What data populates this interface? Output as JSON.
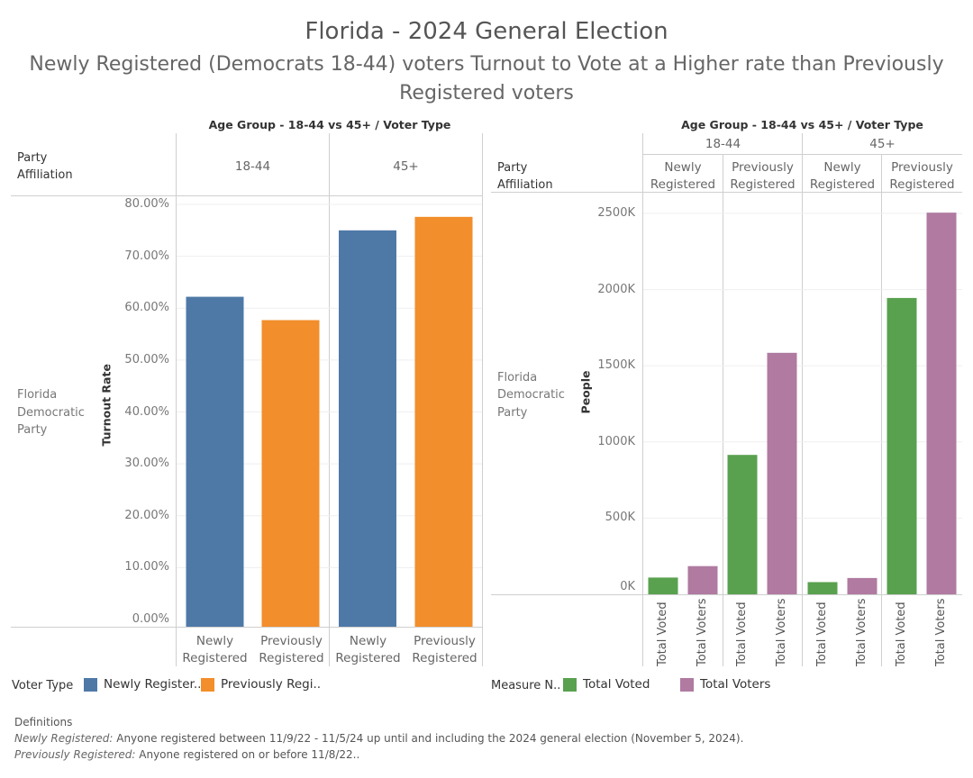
{
  "title": "Florida - 2024 General Election",
  "subtitle": "Newly Registered (Democrats 18-44) voters Turnout to Vote at a Higher rate than Previously Registered voters",
  "left_panel": {
    "header": "Age Group - 18-44 vs 45+  /  Voter Type",
    "row_header_1": "Party",
    "row_header_2": "Affiliation",
    "row_label_1": "Florida",
    "row_label_2": "Democratic",
    "row_label_3": "Party",
    "age_groups": [
      "18-44",
      "45+"
    ],
    "axis_title": "Turnout Rate",
    "ticks": [
      "0.00%",
      "10.00%",
      "20.00%",
      "30.00%",
      "40.00%",
      "50.00%",
      "60.00%",
      "70.00%",
      "80.00%"
    ],
    "bar_labels": [
      {
        "l1": "Newly",
        "l2": "Registered"
      },
      {
        "l1": "Previously",
        "l2": "Registered"
      },
      {
        "l1": "Newly",
        "l2": "Registered"
      },
      {
        "l1": "Previously",
        "l2": "Registered"
      }
    ]
  },
  "right_panel": {
    "header": "Age Group - 18-44 vs 45+  /  Voter Type",
    "row_header_1": "Party",
    "row_header_2": "Affiliation",
    "row_label_1": "Florida",
    "row_label_2": "Democratic",
    "row_label_3": "Party",
    "age_groups": [
      "18-44",
      "45+"
    ],
    "voter_types": [
      {
        "l1": "Newly",
        "l2": "Registered"
      },
      {
        "l1": "Previously",
        "l2": "Registered"
      },
      {
        "l1": "Newly",
        "l2": "Registered"
      },
      {
        "l1": "Previously",
        "l2": "Registered"
      }
    ],
    "axis_title": "People",
    "ticks": [
      "0K",
      "500K",
      "1000K",
      "1500K",
      "2000K",
      "2500K"
    ],
    "measure_labels": [
      "Total Voted",
      "Total Voters",
      "Total Voted",
      "Total Voters",
      "Total Voted",
      "Total Voters",
      "Total Voted",
      "Total Voters"
    ]
  },
  "legend_left": {
    "title": "Voter Type",
    "items": [
      {
        "label": "Newly Register..",
        "color": "#4e79a7"
      },
      {
        "label": "Previously Regi..",
        "color": "#f28e2b"
      }
    ]
  },
  "legend_right": {
    "title": "Measure N..",
    "items": [
      {
        "label": "Total Voted",
        "color": "#59a14f"
      },
      {
        "label": "Total Voters",
        "color": "#b07aa1"
      }
    ]
  },
  "definitions": {
    "title": "Definitions",
    "newly_term": "Newly Registered:",
    "newly_text": " Anyone registered between 11/9/22 - 11/5/24 up until and including the 2024 general election (November 5, 2024).",
    "prev_term": "Previously Registered:",
    "prev_text": " Anyone registered on or before 11/8/22.."
  },
  "chart_data": [
    {
      "type": "bar",
      "title": "Turnout Rate",
      "ylabel": "Turnout Rate",
      "ylim": [
        0,
        80
      ],
      "categories": [
        "18-44 Newly Registered",
        "18-44 Previously Registered",
        "45+ Newly Registered",
        "45+ Previously Registered"
      ],
      "values": [
        62.2,
        57.7,
        75.0,
        77.6
      ],
      "colors": [
        "#4e79a7",
        "#f28e2b",
        "#4e79a7",
        "#f28e2b"
      ]
    },
    {
      "type": "bar",
      "title": "People",
      "ylabel": "People",
      "ylim": [
        0,
        2500000
      ],
      "categories": [
        "18-44 Newly Registered",
        "18-44 Previously Registered",
        "45+ Newly Registered",
        "45+ Previously Registered"
      ],
      "series": [
        {
          "name": "Total Voted",
          "color": "#59a14f",
          "values": [
            110000,
            915000,
            80000,
            1945000
          ]
        },
        {
          "name": "Total Voters",
          "color": "#b07aa1",
          "values": [
            185000,
            1585000,
            107000,
            2505000
          ]
        }
      ]
    }
  ]
}
